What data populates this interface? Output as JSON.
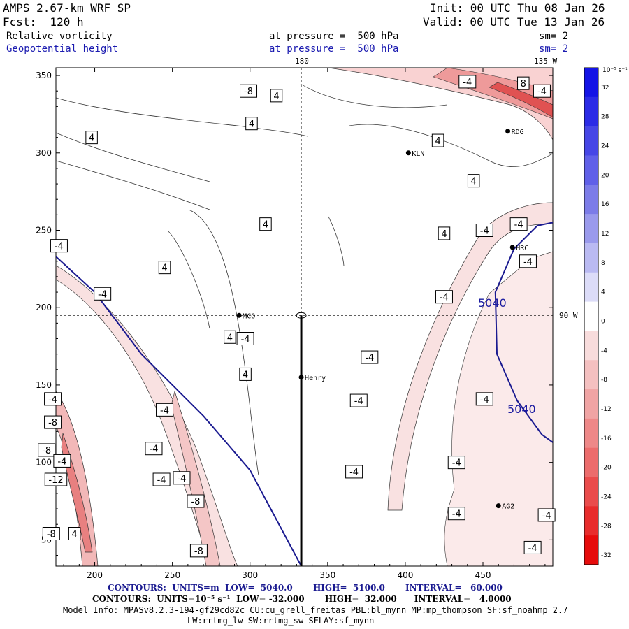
{
  "header": {
    "title": "AMPS 2.67-km WRF SP",
    "forecast": "Fcst:  120 h",
    "init": "Init: 00 UTC Thu 08 Jan 26",
    "valid": "Valid: 00 UTC Tue 13 Jan 26",
    "field1_name": "Relative vorticity",
    "field1_level": "at pressure =  500 hPa",
    "field1_smooth": "sm= 2",
    "field2_name": "Geopotential height",
    "field2_level": "at pressure =  500 hPa",
    "field2_smooth": "sm= 2"
  },
  "map_labels": {
    "lon_180": "180",
    "lon_135w": "135 W",
    "lon_90w": "90 W",
    "stations": [
      {
        "name": "RDG",
        "x": 466,
        "y": 314
      },
      {
        "name": "KLN",
        "x": 402,
        "y": 300
      },
      {
        "name": "HRC",
        "x": 469,
        "y": 239
      },
      {
        "name": "MCO",
        "x": 293,
        "y": 195
      },
      {
        "name": "Henry",
        "x": 333,
        "y": 155
      },
      {
        "name": "AG2",
        "x": 460,
        "y": 72
      }
    ],
    "height_contour_label": "5040"
  },
  "colorbar": {
    "units": "10⁻⁵ s⁻¹",
    "ticks": [
      "32",
      "28",
      "24",
      "20",
      "16",
      "12",
      "8",
      "4",
      "0",
      "-4",
      "-8",
      "-12",
      "-16",
      "-20",
      "-24",
      "-28",
      "-32"
    ],
    "colors": [
      "#1414e6",
      "#2b2be6",
      "#4646e6",
      "#6060e8",
      "#7c7ce8",
      "#9a9aec",
      "#babaf2",
      "#dcdcf8",
      "#ffffff",
      "#f8dcdc",
      "#f4c0c0",
      "#f0a4a4",
      "#ee8888",
      "#ec6c6c",
      "#ea4c4c",
      "#e82c2c",
      "#e60c0c"
    ]
  },
  "footer": {
    "contours1": "CONTOURS:  UNITS=m  LOW=  5040.0       HIGH=  5100.0       INTERVAL=   60.000",
    "contours2": "CONTOURS:  UNITS=10⁻⁵ s⁻¹  LOW= -32.000       HIGH=  32.000      INTERVAL=   4.0000",
    "model_info": "Model Info: MPASv8.2.3-194-gf29cd82c CU:cu_grell_freitas PBL:bl_mynn MP:mp_thompson SF:sf_noahmp 2.7",
    "model_info2": "LW:rrtmg_lw SW:rrtmg_sw SFLAY:sf_mynn"
  },
  "chart_data": {
    "type": "contour_map",
    "xlim": [
      175,
      495
    ],
    "ylim": [
      33,
      355
    ],
    "x_ticks": [
      200,
      250,
      300,
      350,
      400,
      450
    ],
    "y_ticks": [
      50,
      100,
      150,
      200,
      250,
      300,
      350
    ],
    "x_tick_labels": [
      "200",
      "250",
      "300",
      "350",
      "400",
      "450"
    ],
    "y_tick_labels": [
      "50",
      "100",
      "150",
      "200",
      "250",
      "300",
      "350"
    ],
    "vorticity_labels": [
      {
        "v": "-8",
        "x": 299,
        "y": 340
      },
      {
        "v": "4",
        "x": 317,
        "y": 337
      },
      {
        "v": "-4",
        "x": 440,
        "y": 346
      },
      {
        "v": "8",
        "x": 476,
        "y": 345
      },
      {
        "v": "-4",
        "x": 488,
        "y": 340
      },
      {
        "v": "4",
        "x": 301,
        "y": 319
      },
      {
        "v": "4",
        "x": 198,
        "y": 310
      },
      {
        "v": "4",
        "x": 421,
        "y": 308
      },
      {
        "v": "4",
        "x": 444,
        "y": 282
      },
      {
        "v": "4",
        "x": 310,
        "y": 254
      },
      {
        "v": "4",
        "x": 425,
        "y": 248
      },
      {
        "v": "-4",
        "x": 451,
        "y": 250
      },
      {
        "v": "-4",
        "x": 473,
        "y": 254
      },
      {
        "v": "-4",
        "x": 177,
        "y": 240
      },
      {
        "v": "-4",
        "x": 479,
        "y": 230
      },
      {
        "v": "4",
        "x": 245,
        "y": 226
      },
      {
        "v": "-4",
        "x": 205,
        "y": 209
      },
      {
        "v": "-4",
        "x": 425,
        "y": 207
      },
      {
        "v": "4",
        "x": 287,
        "y": 181
      },
      {
        "v": "-4",
        "x": 297,
        "y": 180
      },
      {
        "v": "-4",
        "x": 377,
        "y": 168
      },
      {
        "v": "4",
        "x": 297,
        "y": 157
      },
      {
        "v": "-4",
        "x": 173,
        "y": 141
      },
      {
        "v": "-4",
        "x": 370,
        "y": 140
      },
      {
        "v": "-4",
        "x": 451,
        "y": 141
      },
      {
        "v": "-4",
        "x": 245,
        "y": 134
      },
      {
        "v": "-8",
        "x": 173,
        "y": 126
      },
      {
        "v": "-8",
        "x": 169,
        "y": 108
      },
      {
        "v": "-4",
        "x": 238,
        "y": 109
      },
      {
        "v": "-4",
        "x": 179,
        "y": 101
      },
      {
        "v": "-4",
        "x": 433,
        "y": 100
      },
      {
        "v": "-4",
        "x": 367,
        "y": 94
      },
      {
        "v": "-4",
        "x": 243,
        "y": 89
      },
      {
        "v": "-12",
        "x": 175,
        "y": 89
      },
      {
        "v": "-4",
        "x": 256,
        "y": 90
      },
      {
        "v": "-8",
        "x": 265,
        "y": 75
      },
      {
        "v": "-4",
        "x": 433,
        "y": 67
      },
      {
        "v": "-4",
        "x": 491,
        "y": 66
      },
      {
        "v": "-8",
        "x": 172,
        "y": 54
      },
      {
        "v": "4",
        "x": 187,
        "y": 54
      },
      {
        "v": "-8",
        "x": 267,
        "y": 43
      },
      {
        "v": "-4",
        "x": 482,
        "y": 45
      }
    ],
    "height_contours": [
      {
        "value": 5040,
        "points": [
          [
            175,
            233
          ],
          [
            200,
            210
          ],
          [
            230,
            170
          ],
          [
            270,
            130
          ],
          [
            300,
            95
          ],
          [
            333,
            33
          ]
        ]
      },
      {
        "value": 5040,
        "points": [
          [
            495,
            255
          ],
          [
            485,
            253
          ],
          [
            470,
            238
          ],
          [
            458,
            210
          ],
          [
            459,
            170
          ],
          [
            472,
            140
          ],
          [
            488,
            118
          ],
          [
            495,
            113
          ]
        ]
      }
    ],
    "henry_track": [
      [
        333,
        33
      ],
      [
        333,
        195
      ]
    ]
  }
}
